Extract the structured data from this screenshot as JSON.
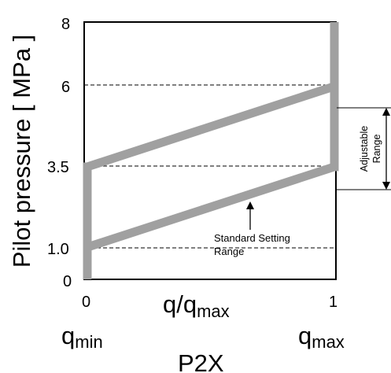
{
  "y_axis": {
    "label": "Pilot pressure [ MPa ]",
    "ticks": [
      {
        "label": "8",
        "value": 8
      },
      {
        "label": "6",
        "value": 6
      },
      {
        "label": "3.5",
        "value": 3.5
      },
      {
        "label": "1.0",
        "value": 1.0
      },
      {
        "label": "0",
        "value": 0
      }
    ]
  },
  "x_axis": {
    "label_main": "q/q",
    "label_sub": "max",
    "tick_min": "0",
    "tick_max": "1",
    "qmin_main": "q",
    "qmin_sub": "min",
    "qmax_main": "q",
    "qmax_sub": "max"
  },
  "annotations": {
    "adjustable_line1": "Adjustable",
    "adjustable_line2": "Range",
    "standard_line1": "Standard Setting",
    "standard_line2": "Range"
  },
  "caption": "P2X",
  "colors": {
    "band": "#a0a0a0",
    "frame": "#000000"
  },
  "chart_data": {
    "type": "line",
    "xlim": [
      0,
      1
    ],
    "ylim": [
      0,
      8
    ],
    "series": [
      {
        "x": [
          0,
          1
        ],
        "y": [
          1.0,
          3.5
        ]
      },
      {
        "x": [
          0,
          1
        ],
        "y": [
          3.5,
          6
        ]
      }
    ]
  }
}
